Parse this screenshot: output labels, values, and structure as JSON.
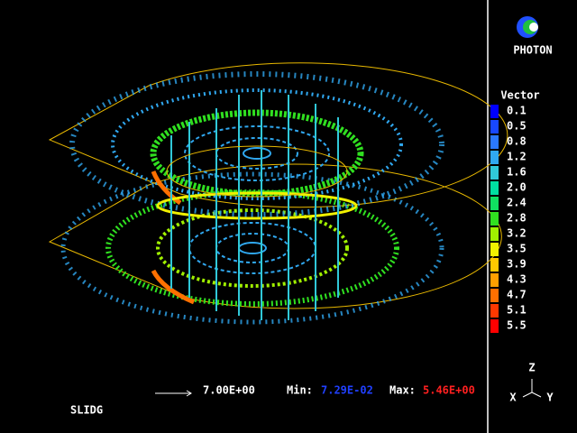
{
  "logo": {
    "title": "PHOTON"
  },
  "legend": {
    "title": "Vector",
    "entries": [
      {
        "label": "0.1",
        "color": "#0000ff"
      },
      {
        "label": "0.5",
        "color": "#1848ff"
      },
      {
        "label": "0.8",
        "color": "#2a78ff"
      },
      {
        "label": "1.2",
        "color": "#30a8f0"
      },
      {
        "label": "1.6",
        "color": "#30c8d8"
      },
      {
        "label": "2.0",
        "color": "#00e0a0"
      },
      {
        "label": "2.4",
        "color": "#10e060"
      },
      {
        "label": "2.8",
        "color": "#30e020"
      },
      {
        "label": "3.2",
        "color": "#a0f000"
      },
      {
        "label": "3.5",
        "color": "#f0f000"
      },
      {
        "label": "3.9",
        "color": "#ffc800"
      },
      {
        "label": "4.3",
        "color": "#ffa000"
      },
      {
        "label": "4.7",
        "color": "#ff7000"
      },
      {
        "label": "5.1",
        "color": "#ff3800"
      },
      {
        "label": "5.5",
        "color": "#ff0000"
      }
    ]
  },
  "footer": {
    "reference_vector": "7.00E+00",
    "min_label": "Min:",
    "min_value": "7.29E-02",
    "max_label": "Max:",
    "max_value": "5.46E+00",
    "case_name": "SLIDG"
  },
  "axes": {
    "z": "Z",
    "x": "X",
    "y": "Y"
  }
}
